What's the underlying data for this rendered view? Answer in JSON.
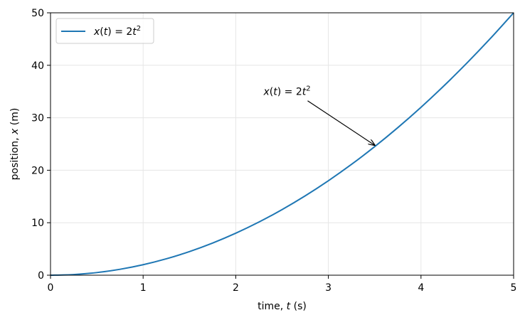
{
  "chart_data": {
    "type": "line",
    "title": "",
    "xlabel": {
      "prefix": "time, ",
      "var": "t",
      "suffix": " (s)"
    },
    "ylabel": {
      "prefix": "position, ",
      "var": "x",
      "suffix": " (m)"
    },
    "xlim": [
      0,
      5
    ],
    "ylim": [
      0,
      50
    ],
    "xticks": [
      0,
      1,
      2,
      3,
      4,
      5
    ],
    "yticks": [
      0,
      10,
      20,
      30,
      40,
      50
    ],
    "grid": true,
    "legend_position": "top-left",
    "series": [
      {
        "name": "x(t) = 2t²",
        "color": "#1f77b4",
        "x": [
          0,
          0.25,
          0.5,
          0.75,
          1,
          1.25,
          1.5,
          1.75,
          2,
          2.25,
          2.5,
          2.75,
          3,
          3.25,
          3.5,
          3.75,
          4,
          4.25,
          4.5,
          4.75,
          5
        ],
        "y": [
          0,
          0.125,
          0.5,
          1.125,
          2,
          3.125,
          4.5,
          6.125,
          8,
          10.125,
          12.5,
          15.125,
          18,
          21.125,
          24.5,
          28.125,
          32,
          36.125,
          40.5,
          45.125,
          50
        ]
      }
    ],
    "annotations": [
      {
        "text": "x(t) = 2t²",
        "x": 3.5,
        "y": 24.5,
        "text_x": 2.3,
        "text_y": 35
      }
    ]
  }
}
